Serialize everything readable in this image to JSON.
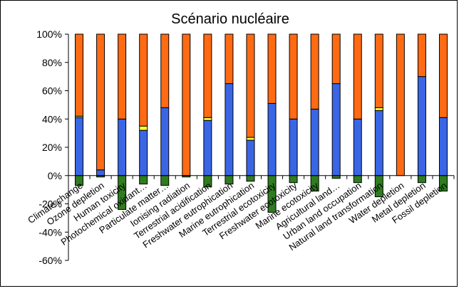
{
  "chart_data": {
    "type": "bar",
    "stacked": true,
    "title": "Scénario nucléaire",
    "ylim": [
      -60,
      100
    ],
    "yticks": [
      -60,
      -40,
      -20,
      0,
      20,
      40,
      60,
      80,
      100
    ],
    "ytick_labels": [
      "-60%",
      "-40%",
      "-20%",
      "0%",
      "20%",
      "40%",
      "60%",
      "80%",
      "100%"
    ],
    "grid": false,
    "legend": "none",
    "categories": [
      "Climate change",
      "Ozone depletion",
      "Human toxicity",
      "Photochemical oxidant…",
      "Particulate matter…",
      "Ionising radiation",
      "Terrestrial acidification",
      "Freshwater eutrophication",
      "Marine eutrophication",
      "Terrestrial ecotoxicity",
      "Freshwater ecotoxicity",
      "Marine ecotoxicity",
      "Agricultural land…",
      "Urban land occupation",
      "Natural land transformation",
      "Water depletion",
      "Metal depletion",
      "Fossil depletion"
    ],
    "series": [
      {
        "color": "#3A66E6",
        "values": [
          41,
          4,
          40,
          32,
          48,
          0,
          39,
          65,
          25,
          51,
          40,
          47,
          65,
          40,
          46,
          0,
          70,
          41
        ]
      },
      {
        "color": "#FFFF33",
        "values": [
          1,
          0,
          0,
          3,
          0,
          0,
          2,
          0,
          2,
          0,
          0,
          0,
          0,
          0,
          2,
          0,
          0,
          0
        ]
      },
      {
        "color": "#FF6A13",
        "values": [
          58,
          96,
          60,
          65,
          52,
          100,
          59,
          35,
          73,
          49,
          60,
          53,
          35,
          60,
          52,
          100,
          30,
          59
        ]
      },
      {
        "color": "#2E7D1E",
        "values": [
          -7,
          -1,
          -24,
          -6,
          -7,
          -1,
          -8,
          -6,
          -4,
          -26,
          -5,
          -11,
          -2,
          -5,
          -15,
          0,
          -5,
          -11
        ]
      }
    ]
  }
}
